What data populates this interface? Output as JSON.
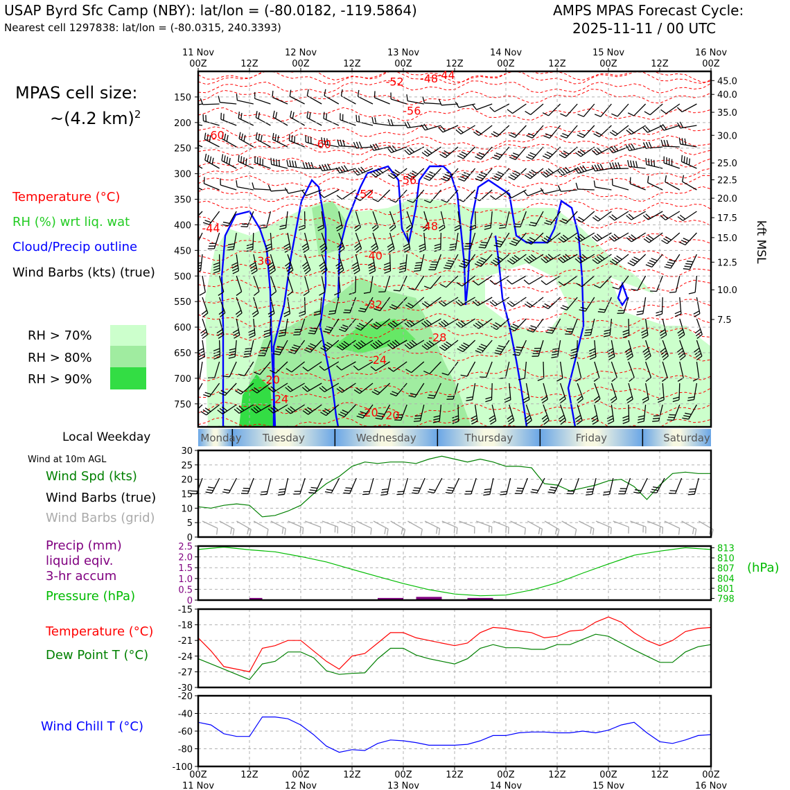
{
  "header": {
    "station_line": "USAP Byrd Sfc Camp (NBY): lat/lon = (-80.0182, -119.5864)",
    "cell_line": "Nearest cell 1297838: lat/lon = (-80.0315, 240.3393)",
    "cycle_title": "AMPS MPAS Forecast Cycle:",
    "cycle_time": "2025-11-11 / 00 UTC",
    "cell_size_title": "MPAS cell size:",
    "cell_size_value": "~(4.2 km)",
    "cell_size_exp": "2"
  },
  "legend_upper": {
    "temperature": "Temperature (°C)",
    "rh": "RH (%) wrt liq. wat",
    "cloud": "Cloud/Precip outline",
    "barbs": "Wind Barbs (kts) (true)",
    "rh_levels": [
      "RH > 70%",
      "RH > 80%",
      "RH > 90%"
    ]
  },
  "colors": {
    "temp": "#ff0000",
    "rh70": "#ccffcc",
    "rh80": "#a0eca0",
    "rh90": "#33dd44",
    "cloud": "#0000ff",
    "wind_speed": "#008000",
    "grid_barb": "#aaaaaa",
    "precip": "#800080",
    "pressure": "#00bb00",
    "dewpoint": "#008000",
    "windchill": "#0000ff"
  },
  "time_axis": {
    "labels_top": [
      [
        "11 Nov",
        "00Z"
      ],
      [
        "",
        "12Z"
      ],
      [
        "12 Nov",
        "00Z"
      ],
      [
        "",
        "12Z"
      ],
      [
        "13 Nov",
        "00Z"
      ],
      [
        "",
        "12Z"
      ],
      [
        "14 Nov",
        "00Z"
      ],
      [
        "",
        "12Z"
      ],
      [
        "15 Nov",
        "00Z"
      ],
      [
        "",
        "12Z"
      ],
      [
        "16 Nov",
        "00Z"
      ]
    ],
    "labels_bottom": [
      [
        "00Z",
        "11 Nov"
      ],
      [
        "12Z",
        ""
      ],
      [
        "00Z",
        "12 Nov"
      ],
      [
        "12Z",
        ""
      ],
      [
        "00Z",
        "13 Nov"
      ],
      [
        "12Z",
        ""
      ],
      [
        "00Z",
        "14 Nov"
      ],
      [
        "12Z",
        ""
      ],
      [
        "00Z",
        "15 Nov"
      ],
      [
        "12Z",
        ""
      ],
      [
        "00Z",
        "16 Nov"
      ]
    ]
  },
  "weekday_bar": {
    "title": "Local Weekday",
    "days": [
      "Monday",
      "Tuesday",
      "Wednesday",
      "Thursday",
      "Friday",
      "Saturday"
    ]
  },
  "lower_labels": {
    "wind_10m": "Wind at 10m AGL",
    "wind_spd": "Wind Spd (kts)",
    "barbs_true": "Wind Barbs (true)",
    "barbs_grid": "Wind Barbs (grid)",
    "precip_1": "Precip (mm)",
    "precip_2": "liquid eqiv.",
    "precip_3": "3-hr accum",
    "pressure": "Pressure (hPa)",
    "pressure_unit": "(hPa)",
    "temperature": "Temperature (°C)",
    "dewpoint": "Dew Point T (°C)",
    "windchill": "Wind Chill T (°C)"
  },
  "chart_data": [
    {
      "type": "contour",
      "panel": "vertical time-height cross-section",
      "yaxis_left": {
        "label": "",
        "ticks": [
          150,
          200,
          250,
          300,
          350,
          400,
          450,
          500,
          550,
          600,
          650,
          700,
          750
        ],
        "range": [
          100,
          795
        ]
      },
      "yaxis_right": {
        "label": "kft MSL",
        "ticks": [
          "45.0",
          "40.0",
          "35.0",
          "30.0",
          "25.0",
          "22.5",
          "20.0",
          "17.5",
          "15.0",
          "12.5",
          "10.0",
          "7.5"
        ],
        "ticks_at_hpa": [
          118,
          145,
          180,
          225,
          279,
          312,
          348,
          386,
          425,
          473,
          527,
          585
        ]
      },
      "x_hours": [
        0,
        120
      ],
      "temperature_contour_labels": [
        {
          "t": 46,
          "p": 128,
          "text": "-52"
        },
        {
          "t": 54,
          "p": 122,
          "text": "-48"
        },
        {
          "t": 58,
          "p": 115,
          "text": "-44"
        },
        {
          "t": 50,
          "p": 185,
          "text": "-56"
        },
        {
          "t": 4,
          "p": 232,
          "text": "-60"
        },
        {
          "t": 29,
          "p": 250,
          "text": "-60"
        },
        {
          "t": 49,
          "p": 320,
          "text": "-56"
        },
        {
          "t": 39,
          "p": 347,
          "text": "-52"
        },
        {
          "t": 54,
          "p": 410,
          "text": "-48"
        },
        {
          "t": 3,
          "p": 414,
          "text": "-44"
        },
        {
          "t": 41,
          "p": 468,
          "text": "-40"
        },
        {
          "t": 15,
          "p": 478,
          "text": "-36"
        },
        {
          "t": 41,
          "p": 563,
          "text": "-32"
        },
        {
          "t": 56,
          "p": 628,
          "text": "-28"
        },
        {
          "t": 42,
          "p": 672,
          "text": "-24"
        },
        {
          "t": 17,
          "p": 710,
          "text": "-20"
        },
        {
          "t": 19,
          "p": 748,
          "text": "-24"
        },
        {
          "t": 40,
          "p": 775,
          "text": "-20"
        },
        {
          "t": 45,
          "p": 780,
          "text": "-20"
        }
      ]
    },
    {
      "type": "line",
      "panel": "wind at 10m",
      "x_hours": [
        0,
        3,
        6,
        9,
        12,
        15,
        18,
        21,
        24,
        27,
        30,
        33,
        36,
        39,
        42,
        45,
        48,
        51,
        54,
        57,
        60,
        63,
        66,
        69,
        72,
        75,
        78,
        81,
        84,
        87,
        90,
        93,
        96,
        99,
        102,
        105,
        108,
        111,
        114,
        117,
        120
      ],
      "series": [
        {
          "name": "Wind Spd (kts)",
          "values": [
            10.5,
            10,
            11,
            11.5,
            11,
            7,
            7.5,
            9,
            11,
            15,
            18.5,
            21,
            24.5,
            26,
            25.5,
            26,
            26,
            25.5,
            27,
            28,
            27,
            26,
            27,
            26,
            24.5,
            24.5,
            24,
            18.5,
            18,
            16,
            17,
            18,
            19.5,
            20,
            17.5,
            13,
            18,
            22,
            22.5,
            22,
            22
          ]
        }
      ],
      "ylim": [
        0,
        30
      ],
      "yticks": [
        0,
        5,
        10,
        15,
        20,
        25,
        30
      ]
    },
    {
      "type": "bar+line",
      "panel": "precip and pressure",
      "precip_bars": [
        {
          "t_start": 12,
          "t_end": 15,
          "mm": 0.1
        },
        {
          "t_start": 42,
          "t_end": 48,
          "mm": 0.1
        },
        {
          "t_start": 51,
          "t_end": 57,
          "mm": 0.15
        },
        {
          "t_start": 63,
          "t_end": 69,
          "mm": 0.1
        }
      ],
      "precip_ylim": [
        0,
        2.5
      ],
      "precip_yticks": [
        "0",
        "0.5",
        "1.0",
        "1.5",
        "2.0",
        "2.5"
      ],
      "pressure": {
        "x_hours": [
          0,
          6,
          12,
          18,
          24,
          30,
          36,
          42,
          48,
          54,
          60,
          66,
          72,
          78,
          84,
          90,
          96,
          102,
          108,
          114,
          120
        ],
        "values": [
          812.5,
          813.2,
          812.4,
          811.8,
          810.4,
          808.8,
          806.6,
          804.5,
          802.4,
          800.6,
          799.3,
          798.8,
          799.0,
          800.5,
          802.6,
          805.5,
          808.2,
          810.8,
          812.0,
          813.0,
          812.5
        ]
      },
      "pressure_ylim": [
        797.5,
        813.5
      ],
      "pressure_yticks": [
        798,
        801,
        804,
        807,
        810,
        813
      ]
    },
    {
      "type": "line",
      "panel": "temperature and dew point",
      "x_hours": [
        0,
        3,
        6,
        9,
        12,
        15,
        18,
        21,
        24,
        27,
        30,
        33,
        36,
        39,
        42,
        45,
        48,
        51,
        54,
        57,
        60,
        63,
        66,
        69,
        72,
        75,
        78,
        81,
        84,
        87,
        90,
        93,
        96,
        99,
        102,
        105,
        108,
        111,
        114,
        117,
        120
      ],
      "series": [
        {
          "name": "Temperature (°C)",
          "values": [
            -20.5,
            -23,
            -26,
            -26.5,
            -27,
            -22.5,
            -22,
            -21,
            -21,
            -23,
            -25,
            -26.5,
            -24,
            -23.5,
            -21.5,
            -19.5,
            -19.5,
            -20.5,
            -21,
            -21.5,
            -22,
            -21.5,
            -19.5,
            -18.5,
            -18.7,
            -19.2,
            -19.5,
            -20.5,
            -20.2,
            -19.2,
            -19,
            -17.5,
            -16.5,
            -17.5,
            -19.5,
            -21,
            -22,
            -21,
            -19.3,
            -18.7,
            -18.5
          ]
        },
        {
          "name": "Dew Point T (°C)",
          "values": [
            -24.5,
            -25.5,
            -26.5,
            -27.5,
            -28.5,
            -25.5,
            -25,
            -23.2,
            -23.2,
            -24.3,
            -26.8,
            -27.5,
            -27.3,
            -27.2,
            -24.5,
            -22.5,
            -22.5,
            -23.8,
            -24.5,
            -25,
            -25.5,
            -24.5,
            -22.5,
            -21.8,
            -22.4,
            -22.4,
            -22.7,
            -22.7,
            -21.8,
            -21.8,
            -20.8,
            -19.8,
            -20.2,
            -21.5,
            -22.8,
            -24,
            -25.2,
            -25.2,
            -23.2,
            -22.2,
            -21.8
          ]
        }
      ],
      "ylim": [
        -30,
        -15
      ],
      "yticks": [
        -30,
        -27,
        -24,
        -21,
        -18,
        -15
      ]
    },
    {
      "type": "line",
      "panel": "wind chill",
      "x_hours": [
        0,
        3,
        6,
        9,
        12,
        15,
        18,
        21,
        24,
        27,
        30,
        33,
        36,
        39,
        42,
        45,
        48,
        51,
        54,
        57,
        60,
        63,
        66,
        69,
        72,
        75,
        78,
        81,
        84,
        87,
        90,
        93,
        96,
        99,
        102,
        105,
        108,
        111,
        114,
        117,
        120
      ],
      "series": [
        {
          "name": "Wind Chill T (°C)",
          "values": [
            -50,
            -53,
            -63,
            -66,
            -66,
            -44,
            -44,
            -46,
            -53,
            -64,
            -77,
            -84,
            -81,
            -82,
            -74,
            -70,
            -71,
            -73,
            -76,
            -76,
            -76,
            -75,
            -71,
            -65,
            -65,
            -62,
            -61,
            -61,
            -62,
            -62,
            -60,
            -62,
            -59,
            -53,
            -50,
            -62,
            -72,
            -74,
            -70,
            -65,
            -64
          ]
        }
      ],
      "ylim": [
        -100,
        -20
      ],
      "yticks": [
        -100,
        -80,
        -60,
        -40,
        -20
      ]
    }
  ]
}
